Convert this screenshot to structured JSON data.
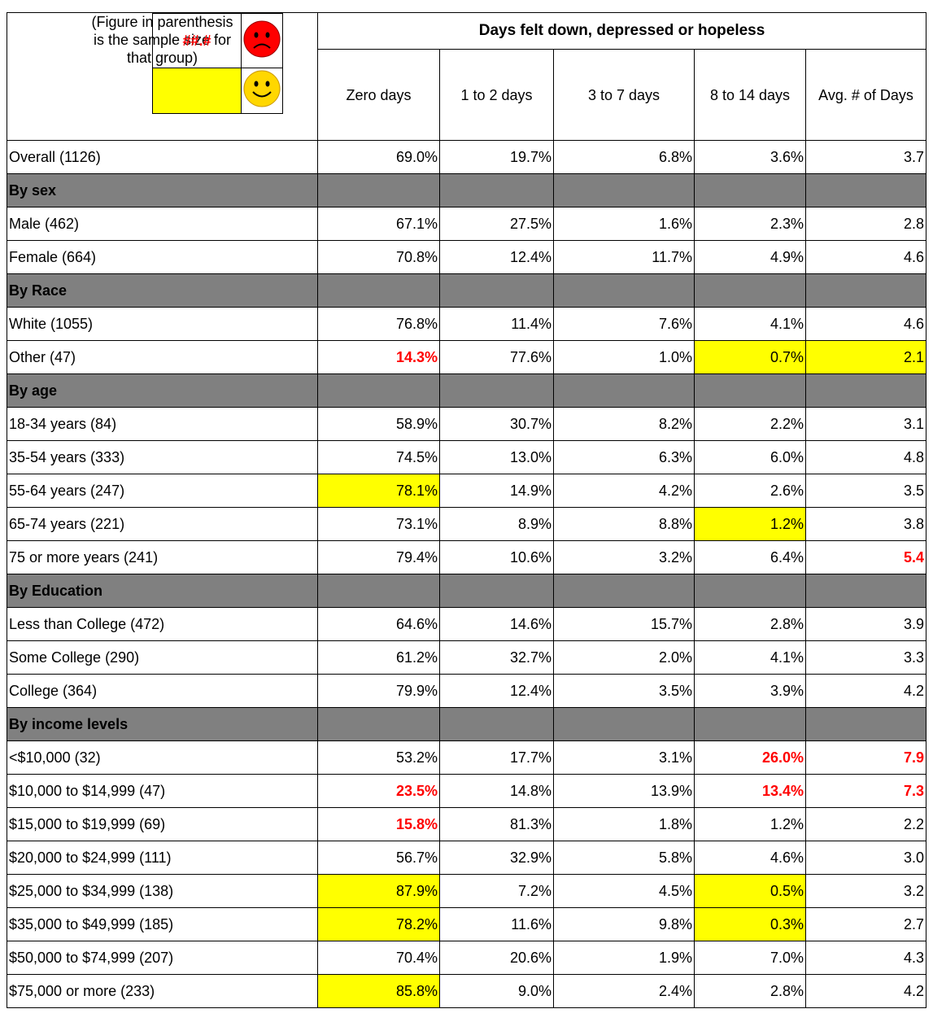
{
  "note": "(Figure in parenthesis is the sample size for that group)",
  "legend": {
    "bad_sample": "##.#"
  },
  "header": {
    "group": "Days felt down, depressed or hopeless",
    "columns": [
      "Zero days",
      "1 to 2 days",
      "3 to 7 days",
      "8 to 14 days",
      "Avg. # of Days"
    ]
  },
  "rows": [
    {
      "label": "Overall (1126)",
      "cells": [
        "69.0%",
        "19.7%",
        "6.8%",
        "3.6%",
        "3.7"
      ]
    },
    {
      "section": "By sex"
    },
    {
      "label": "Male (462)",
      "cells": [
        "67.1%",
        "27.5%",
        "1.6%",
        "2.3%",
        "2.8"
      ]
    },
    {
      "label": "Female (664)",
      "cells": [
        "70.8%",
        "12.4%",
        "11.7%",
        "4.9%",
        "4.6"
      ]
    },
    {
      "section": "By Race"
    },
    {
      "label": "White (1055)",
      "cells": [
        "76.8%",
        "11.4%",
        "7.6%",
        "4.1%",
        "4.6"
      ]
    },
    {
      "label": "Other (47)",
      "cells": [
        "14.3%",
        "77.6%",
        "1.0%",
        "0.7%",
        "2.1"
      ],
      "red": [
        0
      ],
      "yellow": [
        3,
        4
      ]
    },
    {
      "section": "By age"
    },
    {
      "label": "18-34 years (84)",
      "cells": [
        "58.9%",
        "30.7%",
        "8.2%",
        "2.2%",
        "3.1"
      ]
    },
    {
      "label": "35-54 years (333)",
      "cells": [
        "74.5%",
        "13.0%",
        "6.3%",
        "6.0%",
        "4.8"
      ]
    },
    {
      "label": "55-64 years (247)",
      "cells": [
        "78.1%",
        "14.9%",
        "4.2%",
        "2.6%",
        "3.5"
      ],
      "yellow": [
        0
      ]
    },
    {
      "label": "65-74 years (221)",
      "cells": [
        "73.1%",
        "8.9%",
        "8.8%",
        "1.2%",
        "3.8"
      ],
      "yellow": [
        3
      ]
    },
    {
      "label": "75 or more years (241)",
      "cells": [
        "79.4%",
        "10.6%",
        "3.2%",
        "6.4%",
        "5.4"
      ],
      "red": [
        4
      ]
    },
    {
      "section": "By Education"
    },
    {
      "label": "Less than College (472)",
      "cells": [
        "64.6%",
        "14.6%",
        "15.7%",
        "2.8%",
        "3.9"
      ]
    },
    {
      "label": "Some College (290)",
      "cells": [
        "61.2%",
        "32.7%",
        "2.0%",
        "4.1%",
        "3.3"
      ]
    },
    {
      "label": "College (364)",
      "cells": [
        "79.9%",
        "12.4%",
        "3.5%",
        "3.9%",
        "4.2"
      ]
    },
    {
      "section": "By income levels"
    },
    {
      "label": "<$10,000 (32)",
      "cells": [
        "53.2%",
        "17.7%",
        "3.1%",
        "26.0%",
        "7.9"
      ],
      "red": [
        3,
        4
      ]
    },
    {
      "label": "$10,000 to $14,999 (47)",
      "cells": [
        "23.5%",
        "14.8%",
        "13.9%",
        "13.4%",
        "7.3"
      ],
      "red": [
        0,
        3,
        4
      ]
    },
    {
      "label": "$15,000 to $19,999 (69)",
      "cells": [
        "15.8%",
        "81.3%",
        "1.8%",
        "1.2%",
        "2.2"
      ],
      "red": [
        0
      ]
    },
    {
      "label": "$20,000 to $24,999 (111)",
      "cells": [
        "56.7%",
        "32.9%",
        "5.8%",
        "4.6%",
        "3.0"
      ]
    },
    {
      "label": "$25,000 to $34,999 (138)",
      "cells": [
        "87.9%",
        "7.2%",
        "4.5%",
        "0.5%",
        "3.2"
      ],
      "yellow": [
        0,
        3
      ]
    },
    {
      "label": "$35,000 to $49,999 (185)",
      "cells": [
        "78.2%",
        "11.6%",
        "9.8%",
        "0.3%",
        "2.7"
      ],
      "yellow": [
        0,
        3
      ]
    },
    {
      "label": "$50,000 to $74,999 (207)",
      "cells": [
        "70.4%",
        "20.6%",
        "1.9%",
        "7.0%",
        "4.3"
      ]
    },
    {
      "label": "$75,000 or more (233)",
      "cells": [
        "85.8%",
        "9.0%",
        "2.4%",
        "2.8%",
        "4.2"
      ],
      "yellow": [
        0
      ]
    }
  ]
}
